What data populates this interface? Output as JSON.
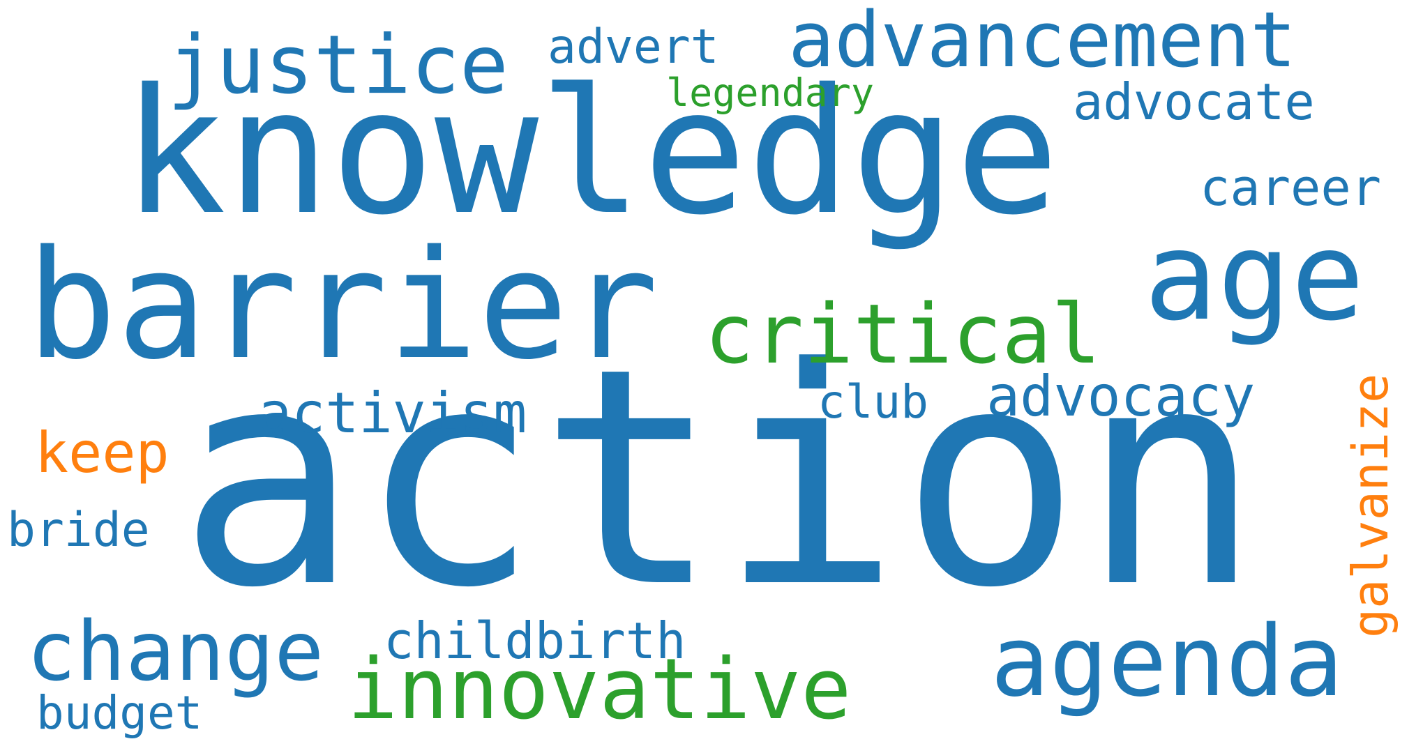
{
  "word_cloud": {
    "colors": {
      "blue": "#1f77b4",
      "green": "#2ca02c",
      "orange": "#ff7f0e",
      "background": "#ffffff"
    },
    "words": {
      "action": "action",
      "knowledge": "knowledge",
      "barrier": "barrier",
      "age": "age",
      "advancement": "advancement",
      "justice": "justice",
      "critical": "critical",
      "agenda": "agenda",
      "change": "change",
      "innovative": "innovative",
      "advocacy": "advocacy",
      "activism": "activism",
      "advocate": "advocate",
      "career": "career",
      "club": "club",
      "keep": "keep",
      "bride": "bride",
      "childbirth": "childbirth",
      "budget": "budget",
      "advert": "advert",
      "legendary": "legendary",
      "galvanize": "galvanize"
    }
  }
}
